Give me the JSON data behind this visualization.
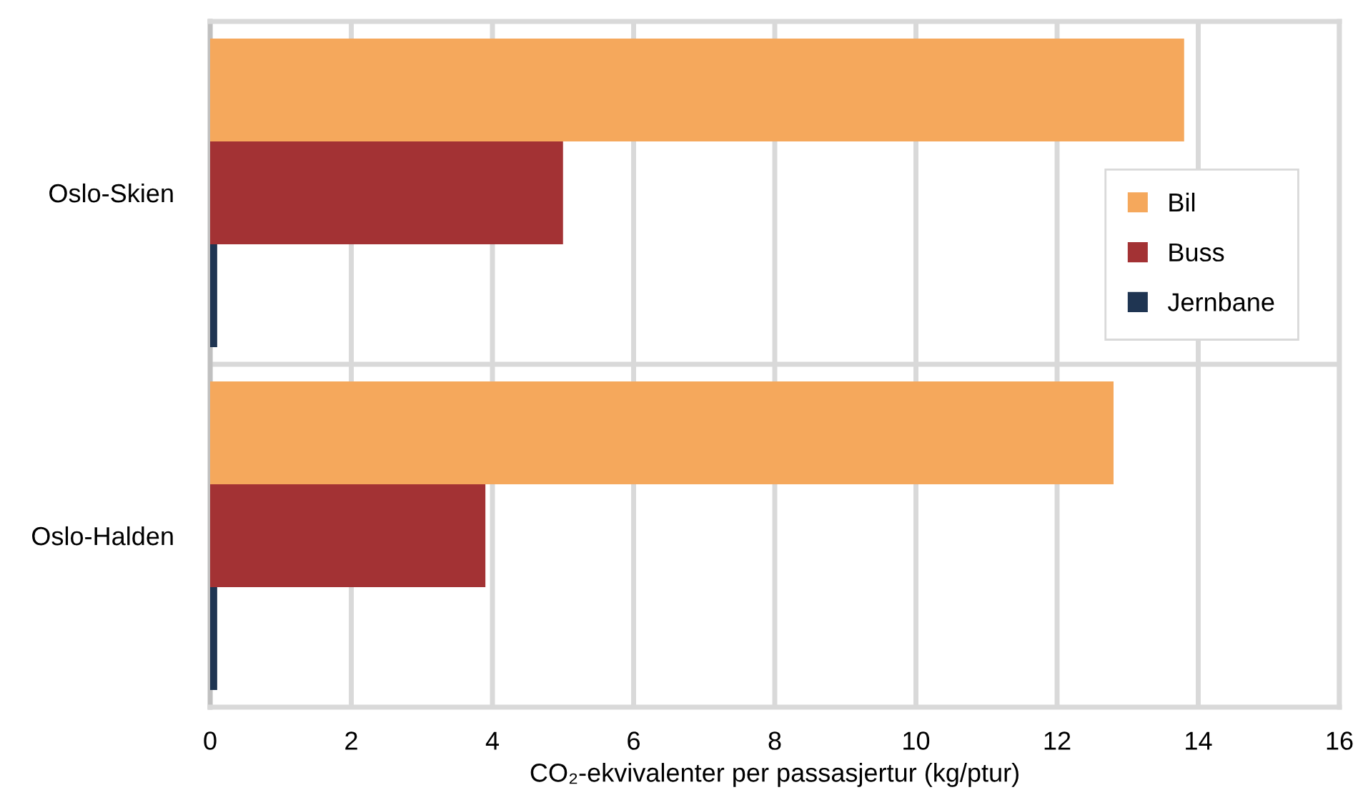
{
  "chart_data": {
    "type": "bar",
    "orientation": "horizontal",
    "categories": [
      "Oslo-Skien",
      "Oslo-Halden"
    ],
    "series": [
      {
        "name": "Bil",
        "color": "#f5a85c",
        "values": [
          13.8,
          12.8
        ]
      },
      {
        "name": "Buss",
        "color": "#a33234",
        "values": [
          5.0,
          3.9
        ]
      },
      {
        "name": "Jernbane",
        "color": "#1f3552",
        "values": [
          0.1,
          0.1
        ]
      }
    ],
    "xlabel": "CO₂-ekvivalenter per passasjertur (kg/ptur)",
    "xlim": [
      0,
      16
    ],
    "xticks": [
      0,
      2,
      4,
      6,
      8,
      10,
      12,
      14,
      16
    ],
    "grid": true,
    "legend": "right"
  }
}
